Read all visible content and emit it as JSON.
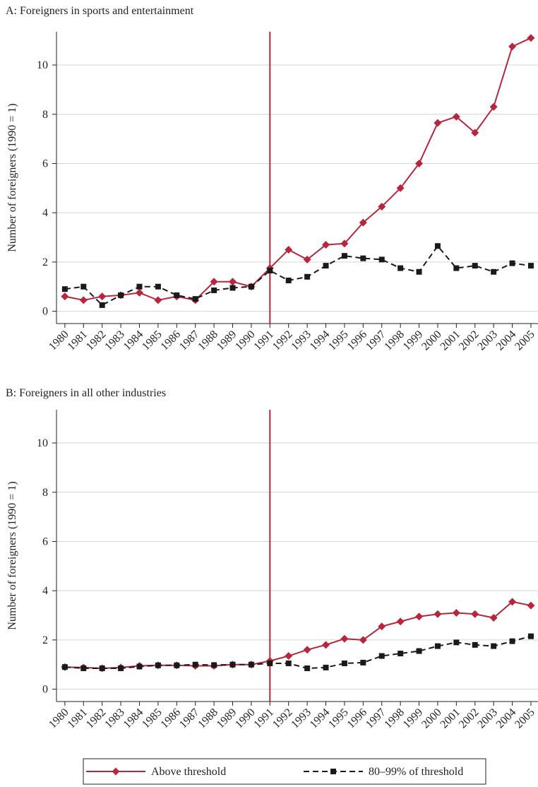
{
  "chart_data": [
    {
      "type": "line",
      "title": "A: Foreigners in sports and entertainment",
      "ylabel": "Number of foreigners (1990 = 1)",
      "x": [
        1980,
        1981,
        1982,
        1983,
        1984,
        1985,
        1986,
        1987,
        1988,
        1989,
        1990,
        1991,
        1992,
        1993,
        1994,
        1995,
        1996,
        1997,
        1998,
        1999,
        2000,
        2001,
        2002,
        2003,
        2004,
        2005
      ],
      "xlim": [
        1979.55,
        2005.38
      ],
      "xticks": [
        1980,
        1981,
        1982,
        1983,
        1984,
        1985,
        1986,
        1987,
        1988,
        1989,
        1990,
        1991,
        1992,
        1993,
        1994,
        1995,
        1996,
        1997,
        1998,
        1999,
        2000,
        2001,
        2002,
        2003,
        2004,
        2005
      ],
      "ylim": [
        -0.5,
        11.35
      ],
      "yticks": [
        0,
        2,
        4,
        6,
        8,
        10
      ],
      "grid": true,
      "vline": 1991,
      "vline_color": "#b8263d",
      "series": [
        {
          "name": "Above threshold",
          "color": "#b8263d",
          "marker": "diamond",
          "dashed": false,
          "values": [
            0.6,
            0.45,
            0.6,
            0.65,
            0.75,
            0.45,
            0.6,
            0.45,
            1.2,
            1.2,
            1.0,
            1.75,
            2.5,
            2.1,
            2.7,
            2.75,
            3.6,
            4.25,
            5.0,
            6.0,
            7.65,
            7.9,
            7.25,
            8.3,
            10.75,
            11.1
          ]
        },
        {
          "name": "80–99% of threshold",
          "color": "#1a1a1a",
          "marker": "square",
          "dashed": true,
          "values": [
            0.9,
            1.0,
            0.25,
            0.65,
            1.0,
            1.0,
            0.65,
            0.5,
            0.85,
            0.95,
            1.0,
            1.65,
            1.25,
            1.4,
            1.85,
            2.25,
            2.15,
            2.1,
            1.75,
            1.6,
            2.65,
            1.75,
            1.85,
            1.6,
            1.95,
            1.85
          ]
        }
      ]
    },
    {
      "type": "line",
      "title": "B: Foreigners in all other industries",
      "ylabel": "Number of foreigners (1990 = 1)",
      "x": [
        1980,
        1981,
        1982,
        1983,
        1984,
        1985,
        1986,
        1987,
        1988,
        1989,
        1990,
        1991,
        1992,
        1993,
        1994,
        1995,
        1996,
        1997,
        1998,
        1999,
        2000,
        2001,
        2002,
        2003,
        2004,
        2005
      ],
      "xlim": [
        1979.55,
        2005.38
      ],
      "xticks": [
        1980,
        1981,
        1982,
        1983,
        1984,
        1985,
        1986,
        1987,
        1988,
        1989,
        1990,
        1991,
        1992,
        1993,
        1994,
        1995,
        1996,
        1997,
        1998,
        1999,
        2000,
        2001,
        2002,
        2003,
        2004,
        2005
      ],
      "ylim": [
        -0.5,
        11.35
      ],
      "yticks": [
        0,
        2,
        4,
        6,
        8,
        10
      ],
      "grid": true,
      "vline": 1991,
      "vline_color": "#b8263d",
      "series": [
        {
          "color": "#b8263d",
          "marker": "diamond",
          "dashed": false,
          "values": [
            0.9,
            0.88,
            0.85,
            0.88,
            0.95,
            0.97,
            0.97,
            0.95,
            0.95,
            1.0,
            1.0,
            1.15,
            1.35,
            1.6,
            1.8,
            2.05,
            2.0,
            2.55,
            2.75,
            2.95,
            3.05,
            3.1,
            3.05,
            2.9,
            3.55,
            3.4
          ]
        },
        {
          "color": "#1a1a1a",
          "marker": "square",
          "dashed": true,
          "values": [
            0.9,
            0.85,
            0.85,
            0.85,
            0.92,
            0.97,
            0.97,
            1.0,
            0.98,
            1.0,
            1.0,
            1.05,
            1.05,
            0.85,
            0.88,
            1.05,
            1.08,
            1.35,
            1.45,
            1.55,
            1.75,
            1.9,
            1.8,
            1.75,
            1.95,
            2.15
          ]
        }
      ]
    }
  ]
}
